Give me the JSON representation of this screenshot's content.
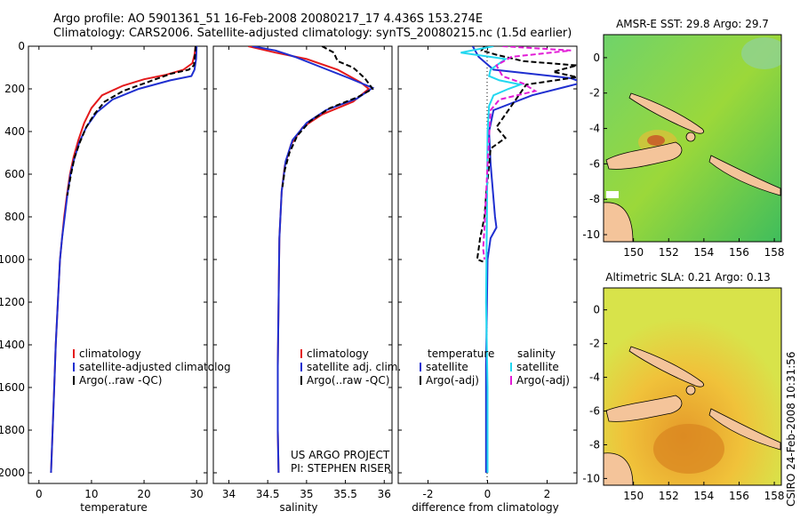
{
  "titles": {
    "line1": "Argo profile: AO 5901361_51 16-Feb-2008 20080217_17 4.436S 153.274E",
    "line2": "Climatology: CARS2006. Satellite-adjusted climatology: synTS_20080215.nc (1.5d earlier)"
  },
  "side_text": "CSIRO 24-Feb-2008 10:31:56",
  "colors": {
    "climatology": "#e41a1c",
    "satellite": "#1f2fd0",
    "argo": "#000000",
    "salinity_satellite": "#22d7f0",
    "salinity_argo": "#e21bd6",
    "land": "#f4c49a"
  },
  "chart_data": [
    {
      "type": "line",
      "id": "temperature",
      "xlabel": "temperature",
      "ylabel": "",
      "xlim": [
        -2,
        32
      ],
      "ylim": [
        2050,
        0
      ],
      "xticks": [
        0,
        10,
        20,
        30
      ],
      "yticks": [
        0,
        200,
        400,
        600,
        800,
        1000,
        1200,
        1400,
        1600,
        1800,
        2000
      ],
      "legend": [
        "climatology",
        "satellite-adjusted climatolog",
        "Argo(..raw -QC)"
      ],
      "series": [
        {
          "name": "climatology",
          "points": [
            [
              29.8,
              0
            ],
            [
              29.6,
              40
            ],
            [
              29.2,
              80
            ],
            [
              27.5,
              110
            ],
            [
              24,
              135
            ],
            [
              20,
              155
            ],
            [
              16,
              185
            ],
            [
              12,
              230
            ],
            [
              10,
              290
            ],
            [
              8.6,
              360
            ],
            [
              7.5,
              440
            ],
            [
              6.6,
              520
            ],
            [
              5.9,
              600
            ],
            [
              5.3,
              700
            ],
            [
              4.8,
              800
            ],
            [
              4.4,
              900
            ],
            [
              4.0,
              1000
            ],
            [
              3.6,
              1200
            ],
            [
              3.2,
              1400
            ],
            [
              2.9,
              1600
            ],
            [
              2.6,
              1800
            ],
            [
              2.3,
              2000
            ]
          ]
        },
        {
          "name": "satellite-adjusted climatolog",
          "points": [
            [
              30,
              0
            ],
            [
              29.9,
              60
            ],
            [
              29.6,
              110
            ],
            [
              29.0,
              140
            ],
            [
              25,
              160
            ],
            [
              19,
              200
            ],
            [
              14,
              250
            ],
            [
              11,
              310
            ],
            [
              9,
              380
            ],
            [
              7.7,
              450
            ],
            [
              6.7,
              530
            ],
            [
              6.0,
              600
            ],
            [
              5.4,
              700
            ],
            [
              4.9,
              800
            ],
            [
              4.4,
              900
            ],
            [
              4.0,
              1000
            ],
            [
              3.6,
              1200
            ],
            [
              3.2,
              1400
            ],
            [
              2.9,
              1600
            ],
            [
              2.6,
              1800
            ],
            [
              2.3,
              2000
            ]
          ]
        },
        {
          "name": "Argo(..raw -QC)",
          "points": [
            [
              29.8,
              0
            ],
            [
              29.7,
              40
            ],
            [
              29.5,
              90
            ],
            [
              28.5,
              110
            ],
            [
              25,
              130
            ],
            [
              20.5,
              170
            ],
            [
              16,
              210
            ],
            [
              12.5,
              260
            ],
            [
              10.5,
              320
            ],
            [
              9,
              380
            ],
            [
              7.8,
              450
            ],
            [
              6.8,
              520
            ],
            [
              6.1,
              600
            ],
            [
              5.4,
              700
            ]
          ]
        }
      ]
    },
    {
      "type": "line",
      "id": "salinity",
      "xlabel": "salinity",
      "xlim": [
        33.8,
        36.1
      ],
      "ylim": [
        2050,
        0
      ],
      "xticks": [
        34,
        34.5,
        35,
        35.5,
        36
      ],
      "yticks": [
        0,
        200,
        400,
        600,
        800,
        1000,
        1200,
        1400,
        1600,
        1800,
        2000
      ],
      "legend": [
        "climatology",
        "satellite adj. clim.",
        "Argo(..raw -QC)"
      ],
      "annotation": [
        "US ARGO PROJECT",
        "PI: STEPHEN RISER"
      ],
      "series": [
        {
          "name": "climatology",
          "points": [
            [
              34.25,
              0
            ],
            [
              34.6,
              30
            ],
            [
              35.0,
              60
            ],
            [
              35.4,
              110
            ],
            [
              35.7,
              170
            ],
            [
              35.8,
              200
            ],
            [
              35.6,
              260
            ],
            [
              35.2,
              320
            ],
            [
              34.95,
              380
            ],
            [
              34.8,
              460
            ],
            [
              34.72,
              560
            ],
            [
              34.68,
              680
            ],
            [
              34.65,
              900
            ],
            [
              34.64,
              1200
            ],
            [
              34.63,
              1500
            ],
            [
              34.63,
              1800
            ],
            [
              34.64,
              2000
            ]
          ]
        },
        {
          "name": "satellite adj. clim.",
          "points": [
            [
              34.3,
              0
            ],
            [
              34.6,
              20
            ],
            [
              34.85,
              50
            ],
            [
              35.2,
              100
            ],
            [
              35.55,
              150
            ],
            [
              35.85,
              195
            ],
            [
              35.65,
              245
            ],
            [
              35.25,
              300
            ],
            [
              35.0,
              360
            ],
            [
              34.82,
              440
            ],
            [
              34.73,
              540
            ],
            [
              34.68,
              680
            ],
            [
              34.65,
              900
            ],
            [
              34.64,
              1200
            ],
            [
              34.63,
              1500
            ],
            [
              34.63,
              1800
            ],
            [
              34.64,
              2000
            ]
          ]
        },
        {
          "name": "Argo(..raw -QC)",
          "points": [
            [
              35.2,
              0
            ],
            [
              35.35,
              30
            ],
            [
              35.4,
              70
            ],
            [
              35.6,
              100
            ],
            [
              35.75,
              150
            ],
            [
              35.85,
              200
            ],
            [
              35.65,
              240
            ],
            [
              35.3,
              290
            ],
            [
              35.05,
              350
            ],
            [
              34.88,
              420
            ],
            [
              34.78,
              500
            ],
            [
              34.72,
              580
            ],
            [
              34.69,
              660
            ]
          ]
        }
      ]
    },
    {
      "type": "line",
      "id": "difference",
      "xlabel": "difference from climatology",
      "xlim": [
        -3,
        3
      ],
      "ylim": [
        2050,
        0
      ],
      "xticks": [
        -2,
        0,
        2
      ],
      "yticks": [
        0,
        200,
        400,
        600,
        800,
        1000,
        1200,
        1400,
        1600,
        1800,
        2000
      ],
      "legend": {
        "temperature": [
          "satellite",
          "Argo(-adj)"
        ],
        "salinity": [
          "satellite",
          "Argo(-adj)"
        ],
        "headers": [
          "temperature",
          "salinity"
        ]
      },
      "series": [
        {
          "name": "temperature satellite",
          "points": [
            [
              -0.5,
              0
            ],
            [
              -0.3,
              50
            ],
            [
              0.2,
              110
            ],
            [
              2.8,
              150
            ],
            [
              3.2,
              170
            ],
            [
              1.5,
              230
            ],
            [
              0.2,
              300
            ],
            [
              0.05,
              400
            ],
            [
              0.1,
              550
            ],
            [
              0.25,
              800
            ],
            [
              0.3,
              850
            ],
            [
              0.1,
              900
            ],
            [
              0,
              1000
            ],
            [
              -0.05,
              1500
            ],
            [
              -0.05,
              2000
            ]
          ]
        },
        {
          "name": "Argo(-adj)",
          "points": [
            [
              -0.1,
              0
            ],
            [
              -0.2,
              20
            ],
            [
              0.3,
              40
            ],
            [
              1.2,
              70
            ],
            [
              3.0,
              90
            ],
            [
              2.2,
              120
            ],
            [
              3.0,
              145
            ],
            [
              1.3,
              180
            ],
            [
              0.8,
              280
            ],
            [
              0.3,
              380
            ],
            [
              0.6,
              430
            ],
            [
              0.1,
              480
            ],
            [
              0.05,
              560
            ],
            [
              -0.05,
              700
            ],
            [
              -0.1,
              800
            ],
            [
              -0.25,
              900
            ],
            [
              -0.3,
              950
            ],
            [
              -0.35,
              1000
            ],
            [
              -0.15,
              1010
            ]
          ]
        },
        {
          "name": "salinity satellite",
          "points": [
            [
              0.2,
              0
            ],
            [
              -0.9,
              30
            ],
            [
              0.6,
              60
            ],
            [
              0.1,
              110
            ],
            [
              0.05,
              140
            ],
            [
              0.4,
              160
            ],
            [
              1.1,
              180
            ],
            [
              0.7,
              200
            ],
            [
              0.2,
              230
            ],
            [
              0.05,
              280
            ],
            [
              0,
              400
            ],
            [
              -0.02,
              800
            ],
            [
              -0.05,
              1200
            ],
            [
              0,
              1600
            ],
            [
              0,
              2000
            ]
          ]
        },
        {
          "name": "salinity Argo(-adj)",
          "points": [
            [
              0.5,
              0
            ],
            [
              2.8,
              20
            ],
            [
              0.8,
              50
            ],
            [
              0.3,
              90
            ],
            [
              0.5,
              140
            ],
            [
              1.2,
              175
            ],
            [
              1.6,
              210
            ],
            [
              0.4,
              250
            ],
            [
              0.1,
              300
            ],
            [
              0.02,
              500
            ],
            [
              -0.05,
              700
            ],
            [
              -0.1,
              850
            ],
            [
              -0.15,
              950
            ],
            [
              -0.1,
              1000
            ]
          ]
        }
      ]
    }
  ],
  "maps": [
    {
      "id": "sst",
      "title": "AMSR-E SST: 29.8 Argo: 29.7",
      "xticks": [
        150,
        152,
        154,
        156,
        158
      ],
      "yticks": [
        0,
        -2,
        -4,
        -6,
        -8,
        -10
      ]
    },
    {
      "id": "sla",
      "title": "Altimetric SLA: 0.21 Argo: 0.13",
      "xticks": [
        150,
        152,
        154,
        156,
        158
      ],
      "yticks": [
        0,
        -2,
        -4,
        -6,
        -8,
        -10
      ]
    }
  ]
}
